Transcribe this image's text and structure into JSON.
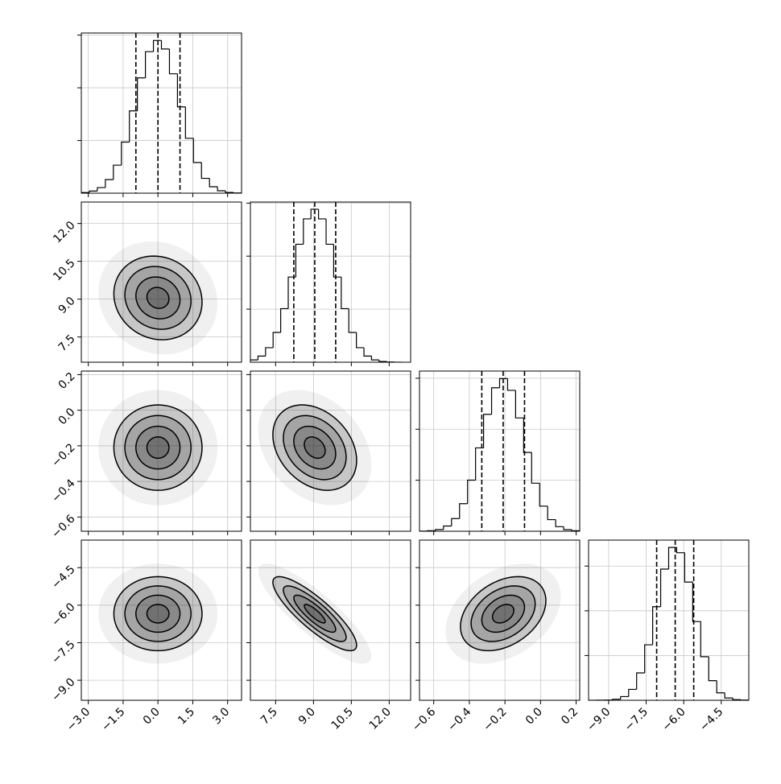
{
  "chart_data": {
    "type": "corner",
    "grid": true,
    "levels": [
      0.5,
      1,
      1.5,
      2
    ],
    "parameters": [
      {
        "xlim": [
          -3.3,
          3.6
        ],
        "ticks": [
          {
            "value": -3.0,
            "label": "−3.0"
          },
          {
            "value": -1.5,
            "label": "−1.5"
          },
          {
            "value": 0.0,
            "label": "0.0"
          },
          {
            "value": 1.5,
            "label": "1.5"
          },
          {
            "value": 3.0,
            "label": "3.0"
          }
        ]
      },
      {
        "xlim": [
          6.5,
          12.85
        ],
        "ticks": [
          {
            "value": 7.5,
            "label": "7.5"
          },
          {
            "value": 9.0,
            "label": "9.0"
          },
          {
            "value": 10.5,
            "label": "10.5"
          },
          {
            "value": 12.0,
            "label": "12.0"
          }
        ]
      },
      {
        "xlim": [
          -0.68,
          0.22
        ],
        "ticks": [
          {
            "value": -0.6,
            "label": "−0.6"
          },
          {
            "value": -0.4,
            "label": "−0.4"
          },
          {
            "value": -0.2,
            "label": "−0.2"
          },
          {
            "value": 0.0,
            "label": "0.0"
          },
          {
            "value": 0.2,
            "label": "0.2"
          }
        ]
      },
      {
        "xlim": [
          -9.8,
          -3.4
        ],
        "ticks": [
          {
            "value": -9.0,
            "label": "−9.0"
          },
          {
            "value": -7.5,
            "label": "−7.5"
          },
          {
            "value": -6.0,
            "label": "−6.0"
          },
          {
            "value": -4.5,
            "label": "−4.5"
          }
        ]
      }
    ],
    "histograms": [
      {
        "bins": [
          -3.3,
          -2.955,
          -2.61,
          -2.265,
          -1.92,
          -1.575,
          -1.23,
          -0.885,
          -0.54,
          -0.195,
          0.15,
          0.495,
          0.84,
          1.185,
          1.53,
          1.875,
          2.22,
          2.565,
          2.91,
          3.255,
          3.6
        ],
        "counts": [
          6,
          20,
          53,
          129,
          266,
          485,
          781,
          1094,
          1343,
          1449,
          1368,
          1133,
          819,
          521,
          291,
          141,
          61,
          23,
          7,
          2
        ],
        "quantiles": [
          -0.95,
          0.0,
          0.95
        ],
        "ylim": [
          0,
          1520
        ],
        "yticks": [
          500,
          1000,
          1500
        ]
      },
      {
        "bins": [
          6.5,
          6.8,
          7.1,
          7.4,
          7.7,
          8.0,
          8.3,
          8.6,
          8.9,
          9.2,
          9.5,
          9.8,
          10.1,
          10.4,
          10.7,
          11.0,
          11.3,
          11.6,
          11.9,
          12.2,
          12.5
        ],
        "counts": [
          22,
          58,
          137,
          281,
          505,
          803,
          1112,
          1351,
          1442,
          1351,
          1112,
          803,
          505,
          281,
          137,
          58,
          22,
          7,
          2,
          0
        ],
        "quantiles": [
          8.22,
          9.05,
          9.88
        ],
        "ylim": [
          0,
          1510
        ],
        "yticks": [
          500,
          1000,
          1500
        ]
      },
      {
        "bins": [
          -0.68,
          -0.635,
          -0.59,
          -0.545,
          -0.5,
          -0.455,
          -0.41,
          -0.365,
          -0.32,
          -0.275,
          -0.23,
          -0.185,
          -0.14,
          -0.095,
          -0.05,
          -0.005,
          0.04,
          0.085,
          0.13,
          0.175,
          0.22
        ],
        "counts": [
          1,
          5,
          17,
          51,
          124,
          270,
          501,
          817,
          1146,
          1406,
          1496,
          1381,
          1111,
          772,
          471,
          246,
          114,
          45,
          16,
          5
        ],
        "quantiles": [
          -0.33,
          -0.21,
          -0.09
        ],
        "ylim": [
          0,
          1570
        ],
        "yticks": [
          500,
          1000,
          1500
        ]
      },
      {
        "bins": [
          -9.8,
          -9.48,
          -9.16,
          -8.84,
          -8.52,
          -8.2,
          -7.88,
          -7.56,
          -7.24,
          -6.92,
          -6.6,
          -6.28,
          -5.96,
          -5.64,
          -5.32,
          -5.0,
          -4.68,
          -4.36,
          -4.04,
          -3.72,
          -3.4
        ],
        "counts": [
          0,
          1,
          3,
          12,
          41,
          122,
          306,
          620,
          1046,
          1466,
          1708,
          1649,
          1321,
          880,
          487,
          219,
          83,
          26,
          7,
          2
        ],
        "quantiles": [
          -7.08,
          -6.34,
          -5.6
        ],
        "ylim": [
          0,
          1790
        ],
        "yticks": [
          500,
          1000,
          1500
        ]
      }
    ],
    "correlations": [
      -0.1,
      0.0,
      -0.3,
      0.0,
      -0.85,
      0.35
    ]
  }
}
